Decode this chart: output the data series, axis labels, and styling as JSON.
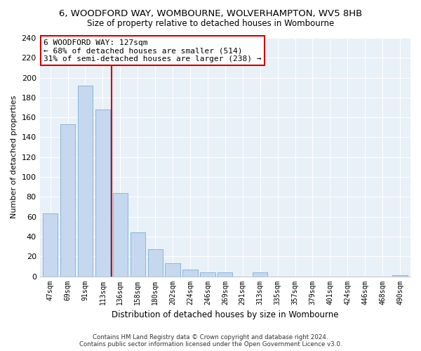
{
  "title": "6, WOODFORD WAY, WOMBOURNE, WOLVERHAMPTON, WV5 8HB",
  "subtitle": "Size of property relative to detached houses in Wombourne",
  "xlabel": "Distribution of detached houses by size in Wombourne",
  "ylabel": "Number of detached properties",
  "bar_labels": [
    "47sqm",
    "69sqm",
    "91sqm",
    "113sqm",
    "136sqm",
    "158sqm",
    "180sqm",
    "202sqm",
    "224sqm",
    "246sqm",
    "269sqm",
    "291sqm",
    "313sqm",
    "335sqm",
    "357sqm",
    "379sqm",
    "401sqm",
    "424sqm",
    "446sqm",
    "468sqm",
    "490sqm"
  ],
  "bar_values": [
    63,
    153,
    192,
    168,
    84,
    44,
    27,
    13,
    7,
    4,
    4,
    0,
    4,
    0,
    0,
    0,
    0,
    0,
    0,
    0,
    1
  ],
  "bar_color": "#c5d8f0",
  "bar_edge_color": "#7bafd4",
  "vline_color": "#cc0000",
  "annotation_title": "6 WOODFORD WAY: 127sqm",
  "annotation_line1": "← 68% of detached houses are smaller (514)",
  "annotation_line2": "31% of semi-detached houses are larger (238) →",
  "annotation_box_facecolor": "white",
  "annotation_box_edgecolor": "#cc0000",
  "ylim": [
    0,
    240
  ],
  "yticks": [
    0,
    20,
    40,
    60,
    80,
    100,
    120,
    140,
    160,
    180,
    200,
    220,
    240
  ],
  "footer1": "Contains HM Land Registry data © Crown copyright and database right 2024.",
  "footer2": "Contains public sector information licensed under the Open Government Licence v3.0.",
  "bg_color": "#ffffff",
  "plot_bg_color": "#e8f0f8",
  "grid_color": "#ffffff"
}
